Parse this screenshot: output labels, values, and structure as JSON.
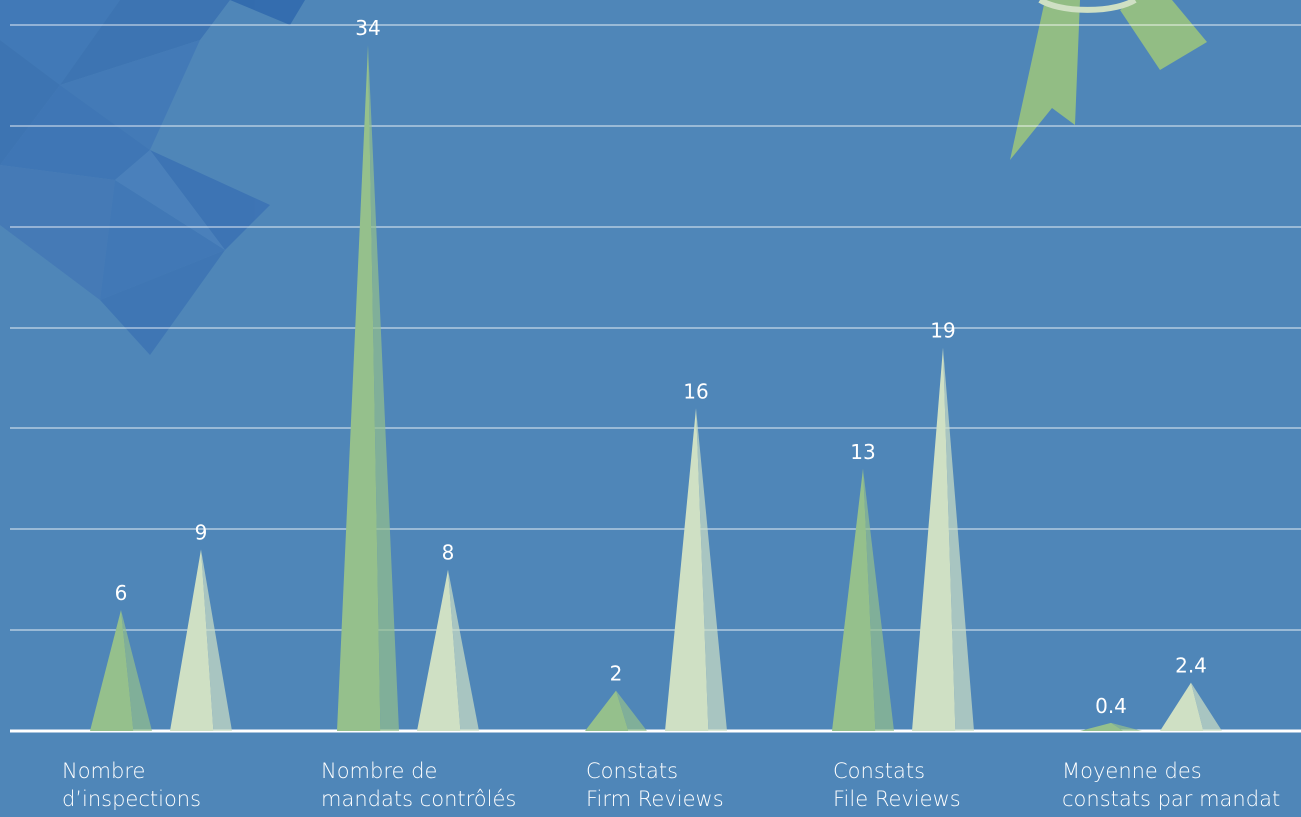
{
  "chart_data": {
    "type": "bar",
    "categories": [
      "Nombre\nd’inspections",
      "Nombre de\nmandats contrôlés",
      "Constats\nFirm Reviews",
      "Constats\nFile Reviews",
      "Moyenne des\nconstats par mandat"
    ],
    "series": [
      {
        "values": [
          6,
          34,
          2,
          13,
          0.4
        ],
        "color": "#95c08c"
      },
      {
        "values": [
          9,
          8,
          16,
          19,
          2.4
        ],
        "color": "#cfe0c4"
      }
    ],
    "value_labels": [
      [
        "6",
        "34",
        "2",
        "13",
        "0.4"
      ],
      [
        "9",
        "8",
        "16",
        "19",
        "2.4"
      ]
    ],
    "ylim": [
      0,
      35
    ],
    "gridlines": [
      0,
      5,
      10,
      15,
      20,
      25,
      30,
      35
    ],
    "grid": true,
    "bar_shape": "triangle-peak"
  },
  "colors": {
    "background": "#4f86b8",
    "polygon_decoration": "#3d74b6",
    "ribbon": "#92bd84",
    "gridline": "#ffffff"
  },
  "decorations": {
    "top_left": "blue-polygon-pattern",
    "top_right": "green-ribbon-badge-icon"
  }
}
